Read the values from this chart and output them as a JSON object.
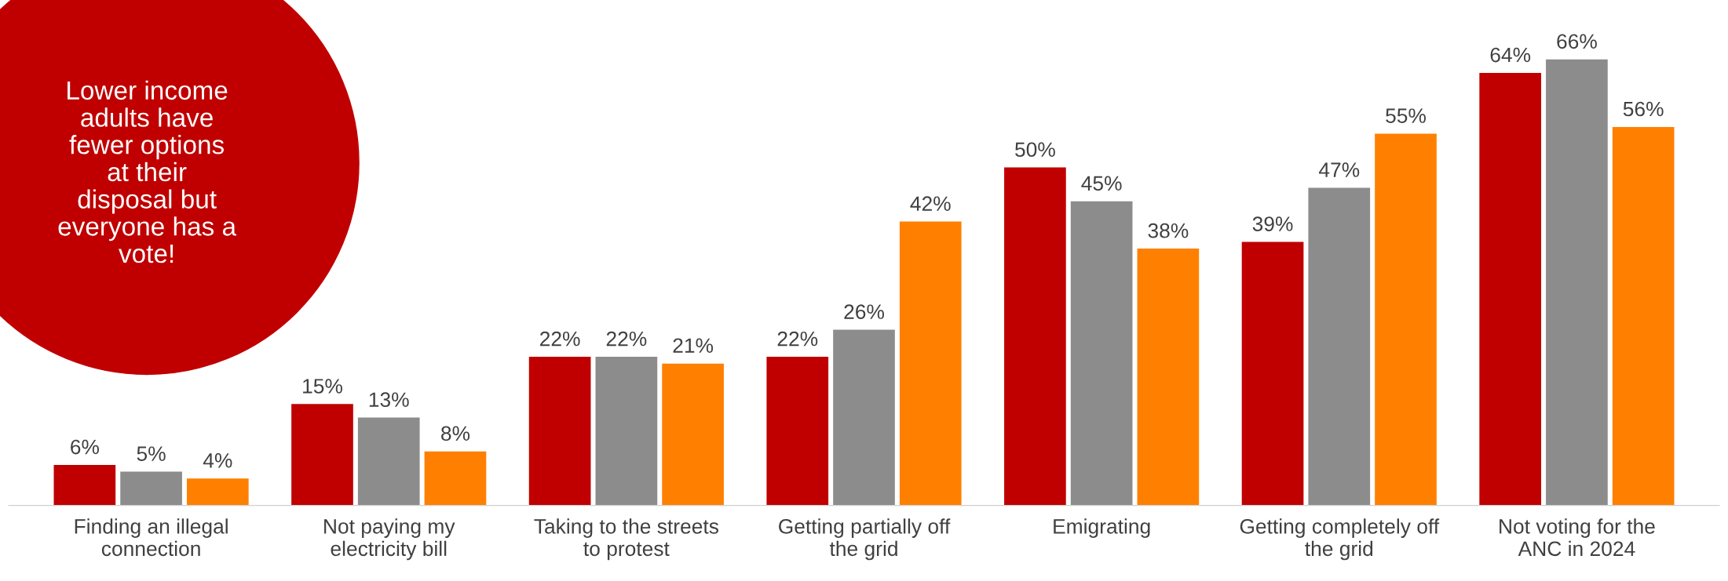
{
  "chart_data": {
    "type": "bar",
    "categories": [
      "Finding an illegal\nconnection",
      "Not paying my\nelectricity bill",
      "Taking to the streets\nto protest",
      "Getting partially off\nthe grid",
      "Emigrating",
      "Getting completely off\nthe grid",
      "Not voting for the\nANC in 2024"
    ],
    "series": [
      {
        "color": "#c00000",
        "values": [
          6,
          15,
          22,
          22,
          50,
          39,
          64
        ],
        "value_labels": [
          "6%",
          "15%",
          "22%",
          "22%",
          "50%",
          "39%",
          "64%"
        ]
      },
      {
        "color": "#8c8c8c",
        "values": [
          5,
          13,
          22,
          26,
          45,
          47,
          66
        ],
        "value_labels": [
          "5%",
          "13%",
          "22%",
          "26%",
          "45%",
          "47%",
          "66%"
        ]
      },
      {
        "color": "#ff8000",
        "values": [
          4,
          8,
          21,
          42,
          38,
          55,
          56
        ],
        "value_labels": [
          "4%",
          "8%",
          "21%",
          "42%",
          "38%",
          "55%",
          "56%"
        ]
      }
    ],
    "annotations": [
      "Lower income\nadults have\nfewer options\nat their\ndisposal but\neveryone has a\nvote!"
    ],
    "grid": false,
    "legend": false
  }
}
